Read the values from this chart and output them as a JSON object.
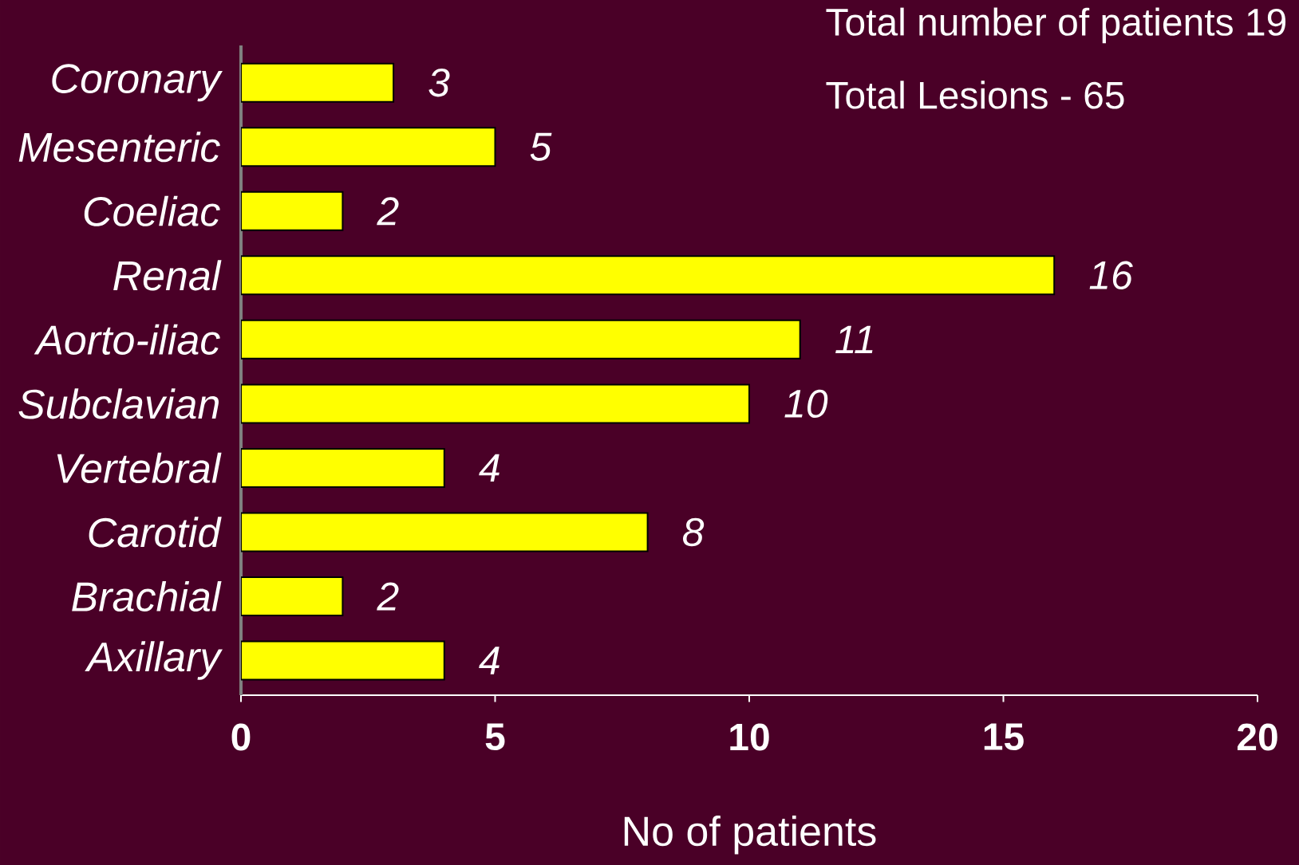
{
  "chart_data": {
    "type": "bar",
    "orientation": "horizontal",
    "xlabel": "No of patients",
    "categories": [
      "Coronary",
      "Mesenteric",
      "Coeliac",
      "Renal",
      "Aorto-iliac",
      "Subclavian",
      "Vertebral",
      "Carotid",
      "Brachial",
      "Axillary"
    ],
    "values": [
      3,
      5,
      2,
      16,
      11,
      10,
      4,
      8,
      2,
      4
    ],
    "color": "#ffff00",
    "data_labels": true,
    "xlim": [
      0,
      20
    ],
    "xticks": [
      0,
      5,
      10,
      15,
      20
    ],
    "annotations": [
      "Total number of patients 19",
      "Total Lesions - 65"
    ]
  }
}
